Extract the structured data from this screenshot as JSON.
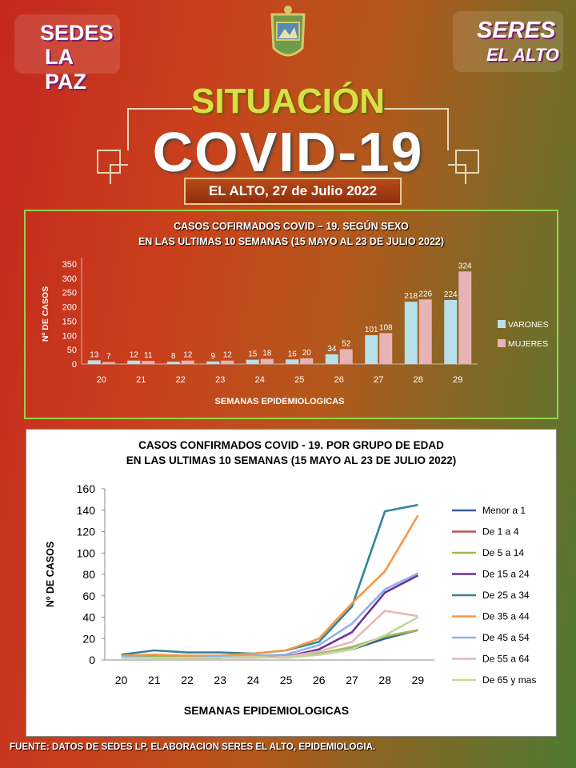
{
  "header": {
    "logo_left": {
      "line1": "SEDES",
      "line2": "LA PAZ"
    },
    "logo_right": {
      "line1": "SERES",
      "line2": "EL ALTO"
    },
    "title_top": "SITUACIÓN",
    "title_main": "COVID-19",
    "date_banner": "EL ALTO, 27 de Julio 2022"
  },
  "chart_data": [
    {
      "type": "bar",
      "title": [
        "CASOS COFIRMADOS COVID – 19. SEGÚN SEXO",
        "EN LAS ULTIMAS 10 SEMANAS (15 MAYO AL 23 DE JULIO 2022)"
      ],
      "xlabel": "SEMANAS EPIDEMIOLOGICAS",
      "ylabel": "Nº DE CASOS",
      "ylim": [
        0,
        350
      ],
      "yticks": [
        0,
        50,
        100,
        150,
        200,
        250,
        300,
        350
      ],
      "categories": [
        "20",
        "21",
        "22",
        "23",
        "24",
        "25",
        "26",
        "27",
        "28",
        "29"
      ],
      "series": [
        {
          "name": "VARONES",
          "color": "#b7e1ea",
          "values": [
            13,
            12,
            8,
            9,
            15,
            16,
            34,
            101,
            218,
            224
          ]
        },
        {
          "name": "MUJERES",
          "color": "#e8b3b5",
          "values": [
            7,
            11,
            12,
            12,
            18,
            20,
            52,
            108,
            226,
            324
          ]
        }
      ],
      "legend": "right",
      "data_labels": true
    },
    {
      "type": "line",
      "title": [
        "CASOS CONFIRMADOS COVID - 19. POR GRUPO DE EDAD",
        "EN LAS ULTIMAS 10 SEMANAS (15 MAYO AL 23 DE JULIO 2022)"
      ],
      "xlabel": "SEMANAS EPIDEMIOLOGICAS",
      "ylabel": "Nº DE CASOS",
      "ylim": [
        0,
        160
      ],
      "yticks": [
        0,
        20,
        40,
        60,
        80,
        100,
        120,
        140,
        160
      ],
      "x": [
        "20",
        "21",
        "22",
        "23",
        "24",
        "25",
        "26",
        "27",
        "28",
        "29"
      ],
      "series": [
        {
          "name": "Menor a 1",
          "color": "#376092",
          "values": [
            3,
            3,
            2,
            2,
            3,
            3,
            5,
            10,
            20,
            28
          ]
        },
        {
          "name": "De 1 a 4",
          "color": "#c0504d",
          "values": [
            4,
            4,
            3,
            3,
            4,
            4,
            6,
            12,
            22,
            28
          ]
        },
        {
          "name": "De 5 a 14",
          "color": "#9bbb59",
          "values": [
            3,
            3,
            3,
            3,
            4,
            4,
            6,
            12,
            22,
            28
          ]
        },
        {
          "name": "De 15 a 24",
          "color": "#7030a0",
          "values": [
            3,
            2,
            2,
            2,
            3,
            3,
            10,
            26,
            63,
            79
          ]
        },
        {
          "name": "De 25 a 34",
          "color": "#31859c",
          "values": [
            5,
            9,
            7,
            7,
            6,
            9,
            17,
            50,
            139,
            145
          ]
        },
        {
          "name": "De 35 a 44",
          "color": "#f79646",
          "values": [
            4,
            5,
            4,
            4,
            6,
            9,
            20,
            53,
            83,
            135
          ]
        },
        {
          "name": "De 45 a 54",
          "color": "#8eb4e3",
          "values": [
            3,
            2,
            2,
            3,
            4,
            5,
            14,
            34,
            66,
            81
          ]
        },
        {
          "name": "De 55 a 64",
          "color": "#e6b9b8",
          "values": [
            2,
            2,
            2,
            2,
            2,
            3,
            8,
            17,
            46,
            41
          ]
        },
        {
          "name": "De 65 y mas",
          "color": "#c3d69b",
          "values": [
            2,
            2,
            2,
            2,
            3,
            2,
            5,
            10,
            23,
            40
          ]
        }
      ],
      "legend": "right",
      "grid": false
    }
  ],
  "footer": "FUENTE: DATOS DE SEDES LP, ELABORACION SERES EL ALTO, EPIDEMIOLOGIA."
}
